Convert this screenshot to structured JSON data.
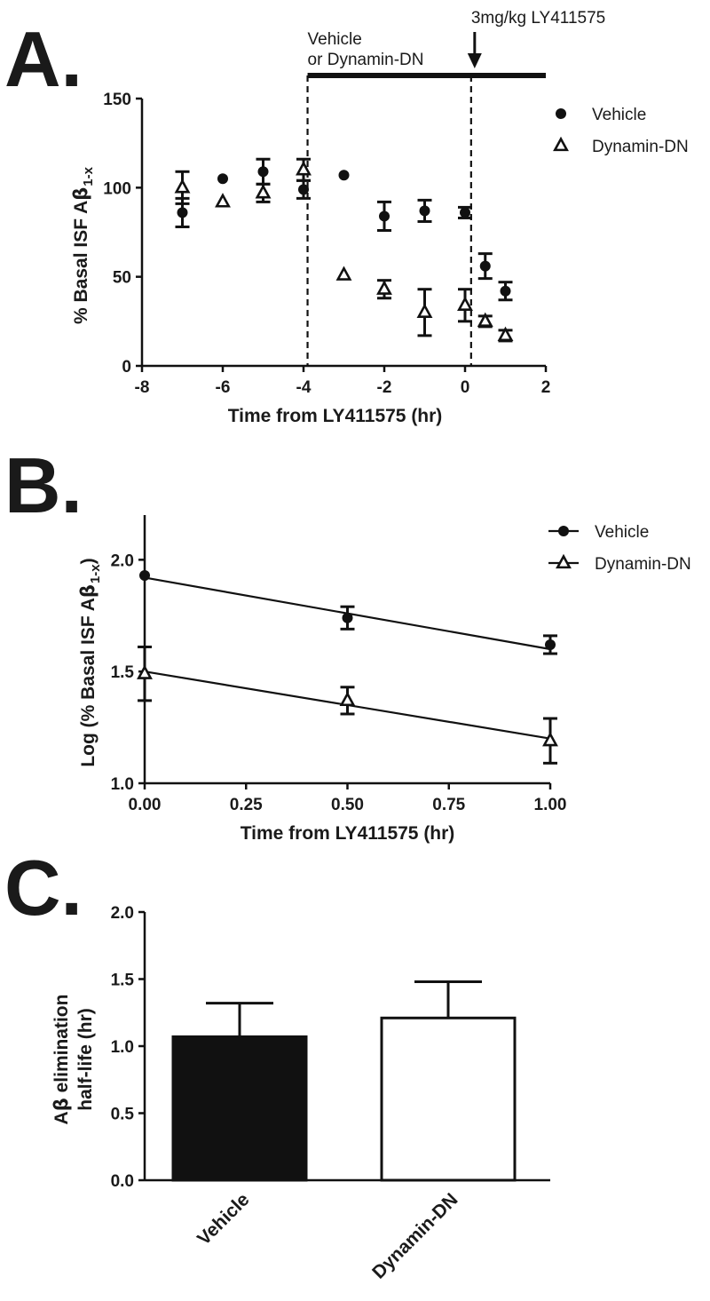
{
  "chart_data": [
    {
      "panel": "A.",
      "type": "scatter",
      "xlabel": "Time from LY411575 (hr)",
      "ylabel": {
        "main": "% Basal ISF A",
        "greek": "β",
        "sub": "1-x"
      },
      "xlim": [
        -8,
        2
      ],
      "ylim": [
        0,
        150
      ],
      "xticks": [
        -8,
        -6,
        -4,
        -2,
        0,
        2
      ],
      "yticks": [
        0,
        50,
        100,
        150
      ],
      "legend_position": "top-right",
      "series": [
        {
          "name": "Vehicle",
          "marker": "circle",
          "x": [
            -7,
            -6,
            -5,
            -4,
            -3,
            -2,
            -1,
            0,
            0.5,
            1
          ],
          "y": [
            86,
            105,
            109,
            99,
            107,
            84,
            87,
            86,
            56,
            42
          ],
          "err": [
            8,
            0,
            7,
            5,
            0,
            8,
            6,
            3,
            7,
            5
          ]
        },
        {
          "name": "Dynamin-DN",
          "marker": "triangle-open",
          "x": [
            -7,
            -6,
            -5,
            -4,
            -3,
            -2,
            -1,
            0,
            0.5,
            1
          ],
          "y": [
            100,
            92,
            97,
            110,
            51,
            43,
            30,
            34,
            25,
            17
          ],
          "err": [
            9,
            0,
            5,
            6,
            0,
            5,
            13,
            9,
            3,
            3
          ]
        }
      ],
      "vlines": [
        -3.9,
        0.15
      ],
      "treatment_bar": {
        "x_start": -3.9,
        "x_end": 2,
        "label_lines": [
          "Vehicle",
          "or Dynamin-DN"
        ]
      },
      "arrow": {
        "x": 0.15,
        "label": "3mg/kg LY411575"
      }
    },
    {
      "panel": "B.",
      "type": "scatter",
      "xlabel": "Time from LY411575 (hr)",
      "ylabel": {
        "main": "Log (% Basal ISF A",
        "greek": "β",
        "sub": "1-x",
        "close": ")"
      },
      "xlim": [
        0,
        1
      ],
      "ylim": [
        1.0,
        2.2
      ],
      "xticks": [
        "0.00",
        "0.25",
        "0.50",
        "0.75",
        "1.00"
      ],
      "yticks": [
        "1.0",
        "1.5",
        "2.0"
      ],
      "legend_position": "top-right",
      "series": [
        {
          "name": "Vehicle",
          "marker": "circle",
          "x": [
            0,
            0.5,
            1
          ],
          "y": [
            1.93,
            1.74,
            1.62
          ],
          "err": [
            0,
            0.05,
            0.04
          ],
          "fit": [
            1.92,
            1.6
          ]
        },
        {
          "name": "Dynamin-DN",
          "marker": "triangle-open",
          "x": [
            0,
            0.5,
            1
          ],
          "y": [
            1.49,
            1.37,
            1.19
          ],
          "err": [
            0.12,
            0.06,
            0.1
          ],
          "fit": [
            1.5,
            1.2
          ]
        }
      ]
    },
    {
      "panel": "C.",
      "type": "bar",
      "categories": [
        "Vehicle",
        "Dynamin-DN"
      ],
      "values": [
        1.07,
        1.21
      ],
      "errors": [
        0.25,
        0.27
      ],
      "fills": [
        "#111111",
        "#ffffff"
      ],
      "ylabel": {
        "line1_greek_prefix": "A",
        "greek": "β",
        "line1_rest": " elimination",
        "line2": "half-life (hr)"
      },
      "ylim": [
        0,
        2.0
      ],
      "yticks": [
        "0.0",
        "0.5",
        "1.0",
        "1.5",
        "2.0"
      ],
      "xlabel_rotation": -45
    }
  ]
}
